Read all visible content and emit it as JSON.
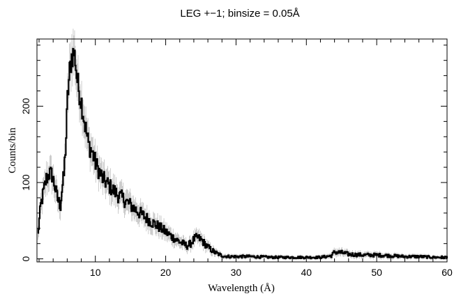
{
  "chart_data": {
    "type": "line",
    "title": "LEG +−1; binsize = 0.05Å",
    "xlabel": "Wavelength (Å)",
    "ylabel": "Counts/bin",
    "xlim": [
      1.7,
      60
    ],
    "ylim": [
      -4,
      288
    ],
    "x_ticks": [
      10,
      20,
      30,
      40,
      50,
      60
    ],
    "x_tick_labels": [
      "10",
      "20",
      "30",
      "40",
      "50",
      "60"
    ],
    "y_ticks": [
      0,
      100,
      200
    ],
    "y_tick_labels": [
      "0",
      "100",
      "200"
    ],
    "x_minor_step": 2,
    "y_minor_step": 20,
    "grid": false,
    "series": [
      {
        "color": "#000000",
        "error_color": "#aaaaaa",
        "x": [
          1.8,
          2.2,
          2.6,
          3.0,
          3.4,
          3.8,
          4.2,
          4.6,
          5.0,
          5.2,
          5.5,
          5.8,
          6.0,
          6.3,
          6.6,
          6.9,
          7.1,
          7.3,
          7.6,
          8.0,
          8.5,
          9.0,
          9.5,
          10.0,
          10.5,
          11.0,
          11.5,
          12.0,
          13.0,
          14.0,
          15.0,
          16.0,
          17.0,
          18.0,
          19.0,
          20.0,
          21.0,
          22.0,
          23.0,
          23.5,
          24.0,
          24.5,
          25.0,
          25.5,
          26.0,
          27.0,
          28.0,
          29.0,
          30.0,
          32.0,
          35.0,
          38.0,
          40.0,
          42.0,
          43.5,
          44.0,
          45.0,
          46.0,
          48.0,
          50.0,
          52.0,
          54.0,
          56.0,
          58.0,
          60.0
        ],
        "y": [
          32,
          70,
          88,
          105,
          112,
          110,
          95,
          78,
          70,
          90,
          110,
          160,
          210,
          245,
          265,
          270,
          262,
          240,
          222,
          205,
          175,
          150,
          140,
          125,
          115,
          105,
          100,
          95,
          85,
          78,
          70,
          62,
          55,
          48,
          42,
          35,
          28,
          22,
          17,
          20,
          26,
          28,
          25,
          20,
          15,
          8,
          4,
          3,
          3,
          3,
          2,
          2,
          2,
          2,
          4,
          9,
          8,
          6,
          5,
          5,
          4,
          3,
          3,
          2,
          2
        ]
      }
    ]
  }
}
